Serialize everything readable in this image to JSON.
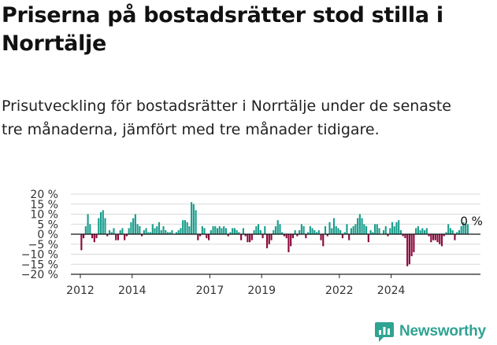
{
  "header": {
    "title": "Priserna på bostadsrätter stod stilla i Norrtälje",
    "subtitle": "Prisutveckling för bostadsrätter i Norrtälje under de senaste tre månaderna, jämfört med tre månader tidigare."
  },
  "brand": {
    "name": "Newsworthy",
    "color": "#2fa392",
    "icon": "newsworthy-logo-icon"
  },
  "colors": {
    "positive": "#1a9e8d",
    "negative": "#8c0a3c"
  },
  "chart_data": {
    "type": "bar",
    "title": "",
    "xlabel": "",
    "ylabel": "",
    "ylim": [
      -20,
      20
    ],
    "yticks": [
      20,
      15,
      10,
      5,
      0,
      -5,
      -10,
      -15,
      -20
    ],
    "ytick_labels": [
      "20 %",
      "15 %",
      "10 %",
      "5 %",
      "0 %",
      "−5 %",
      "−10 %",
      "−15 %",
      "−20 %"
    ],
    "xticks": [
      2012,
      2014,
      2017,
      2019,
      2022,
      2024
    ],
    "xtick_labels": [
      "2012",
      "2014",
      "2017",
      "2019",
      "2022",
      "2024"
    ],
    "grid": true,
    "start": "2012-01",
    "end": "2024-12",
    "values": [
      -8,
      -2,
      4,
      10,
      5,
      -2,
      -4,
      -2,
      8,
      11,
      12,
      8,
      -1,
      2,
      1,
      3,
      -3,
      -3,
      2,
      3,
      -3,
      -1,
      3,
      6,
      8,
      10,
      5,
      4,
      -1,
      2,
      3,
      1,
      1,
      5,
      3,
      4,
      6,
      2,
      4,
      2,
      1,
      1,
      2,
      0,
      1,
      2,
      3,
      7,
      7,
      6,
      4,
      16,
      15,
      12,
      -3,
      -1,
      4,
      3,
      -2,
      -3,
      2,
      4,
      4,
      3,
      4,
      3,
      4,
      3,
      -1,
      1,
      3,
      3,
      2,
      1,
      -3,
      3,
      -1,
      -4,
      -4,
      -3,
      2,
      4,
      5,
      2,
      -2,
      4,
      -7,
      -5,
      -3,
      2,
      4,
      7,
      5,
      1,
      -1,
      -2,
      -9,
      -6,
      -2,
      2,
      -1,
      2,
      5,
      4,
      -2,
      1,
      4,
      3,
      2,
      1,
      2,
      -3,
      -6,
      4,
      -1,
      6,
      3,
      8,
      4,
      3,
      2,
      -2,
      1,
      5,
      -3,
      3,
      4,
      5,
      8,
      10,
      8,
      5,
      4,
      -4,
      2,
      1,
      5,
      5,
      3,
      0,
      2,
      4,
      -1,
      3,
      6,
      4,
      6,
      7,
      2,
      -1,
      -2,
      -16,
      -15,
      -11,
      -9,
      3,
      4,
      2,
      3,
      2,
      3,
      -1,
      -4,
      -3,
      -3,
      -4,
      -5,
      -6,
      -1,
      1,
      5,
      3,
      2,
      -3,
      1,
      2,
      4,
      6,
      5,
      5,
      0
    ],
    "last_label": "0 %",
    "series": [
      {
        "values": "see values"
      }
    ]
  }
}
